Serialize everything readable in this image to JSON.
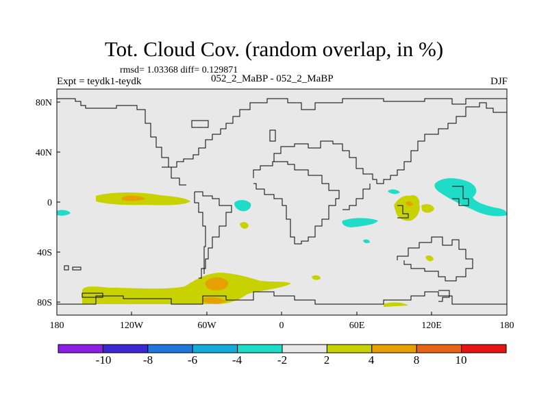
{
  "title": "Tot. Cloud Cov. (random overlap, in %)",
  "stats": "rmsd= 1.03368 diff= 0.129871",
  "experiment": "Expt = teydk1-teydk",
  "runs": "052_2_MaBP - 052_2_MaBP",
  "season": "DJF",
  "map": {
    "background_color": "#e8e8e8",
    "x_ticks": [
      "180",
      "120W",
      "60W",
      "0",
      "60E",
      "120E",
      "180"
    ],
    "y_ticks": [
      "80N",
      "40N",
      "0",
      "40S",
      "80S"
    ]
  },
  "colorbar": {
    "labels": [
      "-10",
      "-8",
      "-6",
      "-4",
      "-2",
      "2",
      "4",
      "8",
      "10"
    ],
    "colors": [
      "#8c1ee6",
      "#3c28d2",
      "#1e78dc",
      "#14aadc",
      "#1edcc8",
      "#e8e8e8",
      "#c8d200",
      "#e6a000",
      "#e66414",
      "#e61414"
    ]
  }
}
